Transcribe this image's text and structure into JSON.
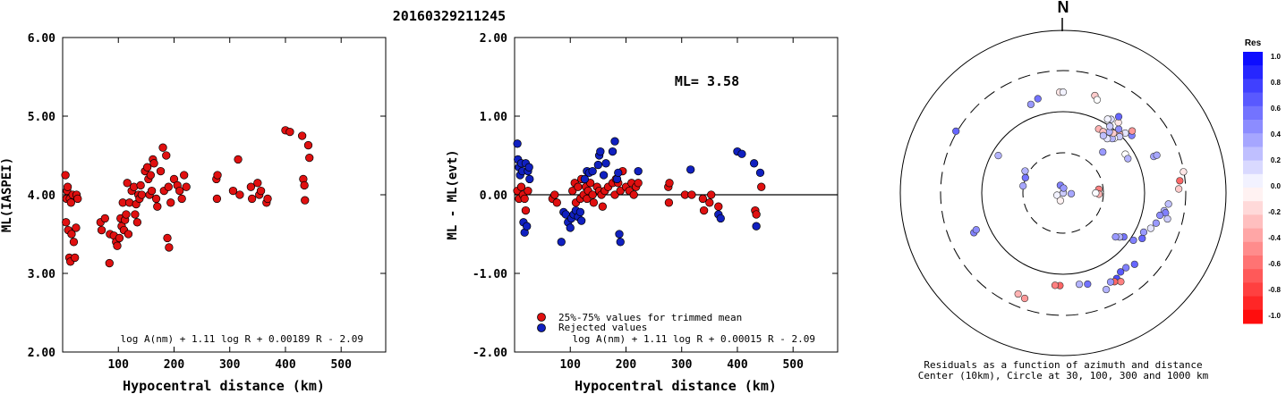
{
  "title": "20160329211245",
  "chart_data": [
    {
      "type": "scatter",
      "ylabel": "ML(IASPEI)",
      "xlabel": "Hypocentral distance (km)",
      "xlim": [
        0,
        580
      ],
      "ylim": [
        2.0,
        6.0
      ],
      "x_ticks": [
        "100",
        "200",
        "300",
        "400",
        "500"
      ],
      "y_ticks": [
        "2.00",
        "3.00",
        "4.00",
        "5.00",
        "6.00"
      ],
      "formula": "log A(nm) + 1.11 log R + 0.00189 R - 2.09",
      "colors": {
        "point": "#e01010"
      },
      "series": [
        {
          "points": [
            [
              5,
              4.25
            ],
            [
              6,
              3.65
            ],
            [
              8,
              4.05
            ],
            [
              7,
              3.95
            ],
            [
              9,
              4.1
            ],
            [
              10,
              3.55
            ],
            [
              12,
              3.2
            ],
            [
              14,
              3.15
            ],
            [
              13,
              3.95
            ],
            [
              15,
              3.9
            ],
            [
              16,
              3.5
            ],
            [
              18,
              4.0
            ],
            [
              20,
              3.4
            ],
            [
              22,
              3.2
            ],
            [
              24,
              3.58
            ],
            [
              25,
              4.0
            ],
            [
              27,
              3.95
            ],
            [
              68,
              3.65
            ],
            [
              70,
              3.55
            ],
            [
              76,
              3.7
            ],
            [
              85,
              3.5
            ],
            [
              84,
              3.13
            ],
            [
              92,
              3.48
            ],
            [
              96,
              3.4
            ],
            [
              98,
              3.35
            ],
            [
              102,
              3.45
            ],
            [
              104,
              3.7
            ],
            [
              106,
              3.6
            ],
            [
              108,
              3.9
            ],
            [
              110,
              3.55
            ],
            [
              112,
              3.68
            ],
            [
              114,
              3.75
            ],
            [
              116,
              4.15
            ],
            [
              118,
              3.5
            ],
            [
              120,
              3.9
            ],
            [
              124,
              4.05
            ],
            [
              128,
              4.1
            ],
            [
              130,
              3.75
            ],
            [
              132,
              3.88
            ],
            [
              134,
              3.65
            ],
            [
              136,
              4.0
            ],
            [
              138,
              3.95
            ],
            [
              140,
              4.12
            ],
            [
              142,
              4.0
            ],
            [
              148,
              4.3
            ],
            [
              152,
              4.35
            ],
            [
              154,
              4.2
            ],
            [
              156,
              4.0
            ],
            [
              158,
              4.25
            ],
            [
              160,
              4.05
            ],
            [
              162,
              4.45
            ],
            [
              164,
              4.4
            ],
            [
              168,
              3.95
            ],
            [
              170,
              3.85
            ],
            [
              176,
              4.3
            ],
            [
              180,
              4.6
            ],
            [
              182,
              4.05
            ],
            [
              186,
              4.5
            ],
            [
              190,
              4.1
            ],
            [
              188,
              3.45
            ],
            [
              191,
              3.33
            ],
            [
              194,
              3.9
            ],
            [
              200,
              4.2
            ],
            [
              206,
              4.12
            ],
            [
              210,
              4.05
            ],
            [
              214,
              3.95
            ],
            [
              218,
              4.25
            ],
            [
              222,
              4.1
            ],
            [
              276,
              4.2
            ],
            [
              278,
              4.25
            ],
            [
              277,
              3.95
            ],
            [
              306,
              4.05
            ],
            [
              315,
              4.45
            ],
            [
              318,
              4.0
            ],
            [
              338,
              4.1
            ],
            [
              340,
              3.95
            ],
            [
              350,
              4.15
            ],
            [
              353,
              4.0
            ],
            [
              356,
              4.05
            ],
            [
              366,
              3.9
            ],
            [
              368,
              3.95
            ],
            [
              400,
              4.82
            ],
            [
              408,
              4.8
            ],
            [
              430,
              4.75
            ],
            [
              432,
              4.2
            ],
            [
              434,
              4.12
            ],
            [
              435,
              3.93
            ],
            [
              441,
              4.63
            ],
            [
              443,
              4.47
            ]
          ]
        }
      ]
    },
    {
      "type": "scatter",
      "ylabel": "ML - ML(evt)",
      "xlabel": "Hypocentral distance (km)",
      "xlim": [
        0,
        580
      ],
      "ylim": [
        -2.0,
        2.0
      ],
      "x_ticks": [
        "100",
        "200",
        "300",
        "400",
        "500"
      ],
      "y_ticks": [
        "-2.00",
        "-1.00",
        "0.00",
        "1.00",
        "2.00"
      ],
      "annotation": "ML= 3.58",
      "formula": "log A(nm) + 1.11 log R + 0.00015 R - 2.09",
      "zero_line": 0.0,
      "colors": {
        "trimmed": "#e01010",
        "rejected": "#1020c0"
      },
      "series": [
        {
          "name": "25%-75% values for trimmed mean",
          "points": [
            [
              5,
              0.05
            ],
            [
              8,
              -0.05
            ],
            [
              12,
              0.1
            ],
            [
              15,
              0.0
            ],
            [
              18,
              -0.05
            ],
            [
              20,
              -0.2
            ],
            [
              24,
              0.05
            ],
            [
              68,
              -0.05
            ],
            [
              72,
              0.0
            ],
            [
              76,
              -0.1
            ],
            [
              104,
              0.05
            ],
            [
              108,
              0.15
            ],
            [
              110,
              -0.1
            ],
            [
              114,
              0.1
            ],
            [
              118,
              -0.05
            ],
            [
              120,
              0.2
            ],
            [
              124,
              0.0
            ],
            [
              128,
              0.1
            ],
            [
              130,
              -0.05
            ],
            [
              132,
              0.05
            ],
            [
              136,
              0.15
            ],
            [
              140,
              0.0
            ],
            [
              142,
              -0.1
            ],
            [
              148,
              0.1
            ],
            [
              152,
              0.05
            ],
            [
              156,
              0.0
            ],
            [
              158,
              -0.15
            ],
            [
              162,
              0.05
            ],
            [
              168,
              0.1
            ],
            [
              176,
              0.15
            ],
            [
              180,
              0.0
            ],
            [
              182,
              0.2
            ],
            [
              186,
              0.15
            ],
            [
              190,
              0.05
            ],
            [
              194,
              0.3
            ],
            [
              200,
              0.1
            ],
            [
              206,
              0.05
            ],
            [
              210,
              0.15
            ],
            [
              214,
              0.0
            ],
            [
              218,
              0.1
            ],
            [
              222,
              0.15
            ],
            [
              276,
              0.1
            ],
            [
              278,
              0.15
            ],
            [
              277,
              -0.1
            ],
            [
              306,
              0.0
            ],
            [
              318,
              0.0
            ],
            [
              338,
              -0.05
            ],
            [
              340,
              -0.2
            ],
            [
              350,
              -0.1
            ],
            [
              353,
              0.0
            ],
            [
              366,
              -0.15
            ],
            [
              432,
              -0.2
            ],
            [
              434,
              -0.25
            ],
            [
              443,
              0.1
            ]
          ]
        },
        {
          "name": "Rejected values",
          "points": [
            [
              5,
              0.65
            ],
            [
              6,
              0.45
            ],
            [
              8,
              0.35
            ],
            [
              10,
              0.25
            ],
            [
              12,
              0.4
            ],
            [
              14,
              0.3
            ],
            [
              16,
              -0.35
            ],
            [
              18,
              -0.48
            ],
            [
              20,
              0.4
            ],
            [
              24,
              0.3
            ],
            [
              27,
              0.2
            ],
            [
              22,
              -0.4
            ],
            [
              26,
              0.35
            ],
            [
              84,
              -0.6
            ],
            [
              88,
              -0.22
            ],
            [
              92,
              -0.25
            ],
            [
              96,
              -0.35
            ],
            [
              100,
              -0.42
            ],
            [
              102,
              -0.3
            ],
            [
              106,
              -0.25
            ],
            [
              110,
              -0.2
            ],
            [
              114,
              -0.28
            ],
            [
              118,
              -0.22
            ],
            [
              120,
              -0.33
            ],
            [
              126,
              0.2
            ],
            [
              130,
              0.3
            ],
            [
              134,
              0.28
            ],
            [
              140,
              0.3
            ],
            [
              150,
              0.38
            ],
            [
              152,
              0.5
            ],
            [
              154,
              0.55
            ],
            [
              160,
              0.25
            ],
            [
              164,
              0.4
            ],
            [
              176,
              0.55
            ],
            [
              180,
              0.68
            ],
            [
              184,
              0.2
            ],
            [
              186,
              0.28
            ],
            [
              188,
              -0.5
            ],
            [
              190,
              -0.6
            ],
            [
              222,
              0.3
            ],
            [
              316,
              0.32
            ],
            [
              366,
              -0.25
            ],
            [
              370,
              -0.3
            ],
            [
              400,
              0.55
            ],
            [
              408,
              0.52
            ],
            [
              430,
              0.4
            ],
            [
              434,
              -0.4
            ],
            [
              441,
              0.28
            ]
          ]
        }
      ]
    }
  ],
  "polar": {
    "north_label": "N",
    "caption_line1": "Residuals as a function of azimuth and distance",
    "caption_line2": "Center (10km), Circle at 30, 100, 300 and 1000 km",
    "points": [
      [
        20,
        0.0,
        0.25
      ],
      [
        70,
        0.0,
        -0.3
      ],
      [
        160,
        0.0,
        0.2
      ],
      [
        340,
        0.05,
        0.5
      ],
      [
        95,
        0.05,
        0.35
      ],
      [
        250,
        0.04,
        0.05
      ],
      [
        200,
        0.05,
        -0.05
      ],
      [
        5,
        0.03,
        0.4
      ],
      [
        300,
        0.27,
        0.3
      ],
      [
        292,
        0.25,
        0.55
      ],
      [
        84,
        0.22,
        -0.5
      ],
      [
        92,
        0.22,
        -0.3
      ],
      [
        345,
        0.6,
        0.55
      ],
      [
        340,
        0.58,
        0.4
      ],
      [
        358,
        0.62,
        -0.1
      ],
      [
        0,
        0.62,
        0.05
      ],
      [
        18,
        0.63,
        -0.2
      ],
      [
        20,
        0.61,
        0.0
      ],
      [
        300,
        0.76,
        0.6
      ],
      [
        300,
        0.46,
        0.3
      ],
      [
        50,
        0.55,
        0.5
      ],
      [
        48,
        0.57,
        -0.4
      ],
      [
        46,
        0.53,
        0.1
      ],
      [
        44,
        0.5,
        -0.3
      ],
      [
        45,
        0.49,
        0.2
      ],
      [
        43,
        0.46,
        0.0
      ],
      [
        42,
        0.45,
        0.3
      ],
      [
        40,
        0.48,
        -0.2
      ],
      [
        41,
        0.52,
        0.45
      ],
      [
        39,
        0.43,
        0.1
      ],
      [
        38,
        0.55,
        -0.1
      ],
      [
        37,
        0.47,
        0.3
      ],
      [
        36,
        0.58,
        0.6
      ],
      [
        35,
        0.5,
        0.2
      ],
      [
        33,
        0.54,
        0.15
      ],
      [
        31,
        0.53,
        0.05
      ],
      [
        29,
        0.45,
        -0.3
      ],
      [
        33,
        0.45,
        -0.25
      ],
      [
        35,
        0.43,
        0.25
      ],
      [
        44,
        0.35,
        0.4
      ],
      [
        58,
        0.45,
        0.0
      ],
      [
        62,
        0.45,
        0.3
      ],
      [
        68,
        0.6,
        0.35
      ],
      [
        68,
        0.62,
        0.35
      ],
      [
        80,
        0.75,
        -0.1
      ],
      [
        84,
        0.72,
        -0.6
      ],
      [
        88,
        0.71,
        -0.2
      ],
      [
        90,
        0.2,
        0.02
      ],
      [
        96,
        0.65,
        0.25
      ],
      [
        100,
        0.63,
        0.3
      ],
      [
        101,
        0.64,
        0.5
      ],
      [
        103,
        0.61,
        0.45
      ],
      [
        104,
        0.66,
        0.2
      ],
      [
        108,
        0.6,
        0.4
      ],
      [
        112,
        0.58,
        0.1
      ],
      [
        116,
        0.55,
        0.4
      ],
      [
        120,
        0.56,
        0.6
      ],
      [
        124,
        0.52,
        0.5
      ],
      [
        126,
        0.46,
        0.55
      ],
      [
        128,
        0.44,
        0.3
      ],
      [
        130,
        0.42,
        0.4
      ],
      [
        135,
        0.62,
        0.6
      ],
      [
        140,
        0.6,
        0.5
      ],
      [
        144,
        0.6,
        0.65
      ],
      [
        148,
        0.62,
        0.7
      ],
      [
        147,
        0.65,
        -0.5
      ],
      [
        150,
        0.63,
        -0.6
      ],
      [
        152,
        0.62,
        0.4
      ],
      [
        156,
        0.65,
        0.3
      ],
      [
        165,
        0.58,
        0.55
      ],
      [
        170,
        0.57,
        0.3
      ],
      [
        182,
        0.57,
        -0.6
      ],
      [
        185,
        0.57,
        -0.5
      ],
      [
        200,
        0.69,
        -0.4
      ],
      [
        204,
        0.68,
        -0.3
      ],
      [
        246,
        0.6,
        0.5
      ],
      [
        247,
        0.58,
        0.45
      ],
      [
        280,
        0.25,
        0.35
      ]
    ]
  },
  "colorbar": {
    "title": "Res",
    "labels": [
      "1.0",
      "0.8",
      "0.6",
      "0.4",
      "0.2",
      "0.0",
      "-0.2",
      "-0.4",
      "-0.6",
      "-0.8",
      "-1.0"
    ]
  }
}
